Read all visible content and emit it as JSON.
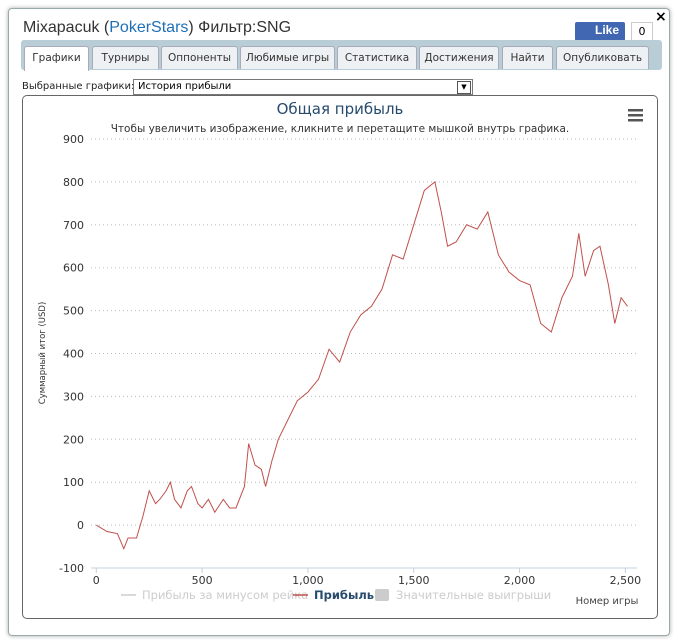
{
  "window": {
    "title_parts": [
      "Mixapacuk (",
      "PokerStars",
      ") Фильтр:SNG"
    ],
    "like": "Like",
    "like_count": "0",
    "close": "×"
  },
  "tabs": [
    "Графики",
    "Турниры",
    "Оппоненты",
    "Любимые игры",
    "Статистика",
    "Достижения",
    "Найти",
    "Опубликовать"
  ],
  "selector": {
    "label": "Выбранные графики:",
    "value": "История прибыли"
  },
  "chart_data": {
    "type": "line",
    "title": "Общая прибыль",
    "subtitle": "Чтобы увеличить изображение, кликните и перетащите мышкой внутрь графика.",
    "y_label": "Суммарный итог (USD)",
    "x_label": "Номер игры",
    "xlim": [
      -25,
      2555
    ],
    "ylim": [
      -100,
      900
    ],
    "xticks": [
      0,
      500,
      {
        "value": 1000,
        "label": "1,000"
      },
      {
        "value": 1500,
        "label": "1,500"
      },
      {
        "value": 2000,
        "label": "2,000"
      },
      {
        "value": 2500,
        "label": "2,500"
      }
    ],
    "yticks": [
      -100,
      0,
      100,
      200,
      300,
      400,
      500,
      600,
      700,
      800,
      900
    ],
    "grid": true,
    "series": [
      {
        "name": "Прибыль за минусом рейка",
        "color": "#cccccc",
        "visible": false
      },
      {
        "name": "Прибыль",
        "color": "#c0504d",
        "visible": true,
        "x": [
          0,
          50,
          100,
          130,
          150,
          190,
          220,
          250,
          280,
          300,
          330,
          350,
          370,
          400,
          430,
          450,
          480,
          500,
          530,
          560,
          600,
          630,
          660,
          700,
          720,
          750,
          780,
          800,
          830,
          860,
          900,
          950,
          1000,
          1050,
          1100,
          1150,
          1200,
          1250,
          1300,
          1350,
          1400,
          1450,
          1500,
          1550,
          1600,
          1630,
          1660,
          1700,
          1750,
          1800,
          1850,
          1900,
          1950,
          2000,
          2050,
          2100,
          2150,
          2200,
          2250,
          2280,
          2310,
          2350,
          2380,
          2420,
          2450,
          2480,
          2510
        ],
        "values": [
          0,
          -15,
          -20,
          -55,
          -30,
          -30,
          20,
          80,
          50,
          60,
          80,
          100,
          60,
          40,
          80,
          90,
          50,
          40,
          60,
          30,
          60,
          40,
          40,
          90,
          190,
          140,
          130,
          90,
          150,
          200,
          240,
          290,
          310,
          340,
          410,
          380,
          450,
          490,
          510,
          550,
          630,
          620,
          700,
          780,
          800,
          730,
          650,
          660,
          700,
          690,
          730,
          630,
          590,
          570,
          560,
          470,
          450,
          530,
          580,
          680,
          580,
          640,
          650,
          560,
          470,
          530,
          510
        ]
      },
      {
        "name": "Значительные выигрыши",
        "color": "#cccccc",
        "visible": false
      }
    ]
  }
}
